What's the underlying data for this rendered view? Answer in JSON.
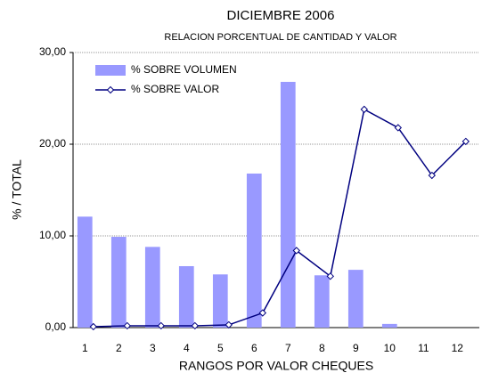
{
  "chart_data": {
    "type": "bar_line",
    "title": "DICIEMBRE 2006",
    "subtitle": "RELACION PORCENTUAL DE CANTIDAD Y VALOR",
    "x_label": "RANGOS POR VALOR CHEQUES",
    "y_label": "% / TOTAL",
    "categories": [
      "1",
      "2",
      "3",
      "4",
      "5",
      "6",
      "7",
      "8",
      "9",
      "10",
      "11",
      "12"
    ],
    "series": [
      {
        "name": "% SOBRE VOLUMEN",
        "kind": "bar",
        "color": "#9999ff",
        "values": [
          12.1,
          9.9,
          8.8,
          6.7,
          5.8,
          16.8,
          26.8,
          5.7,
          6.3,
          0.4,
          0,
          0
        ]
      },
      {
        "name": "% SOBRE VALOR",
        "kind": "line",
        "color": "#000080",
        "values": [
          0.1,
          0.2,
          0.2,
          0.2,
          0.3,
          1.6,
          8.4,
          5.6,
          23.8,
          21.8,
          16.6,
          20.3
        ]
      }
    ],
    "ylim": [
      0,
      30
    ],
    "yticks": [
      {
        "value": 0,
        "label": "0,00"
      },
      {
        "value": 10,
        "label": "10,00"
      },
      {
        "value": 20,
        "label": "20,00"
      },
      {
        "value": 30,
        "label": "30,00"
      }
    ],
    "grid": true,
    "legend": "upper-left"
  }
}
